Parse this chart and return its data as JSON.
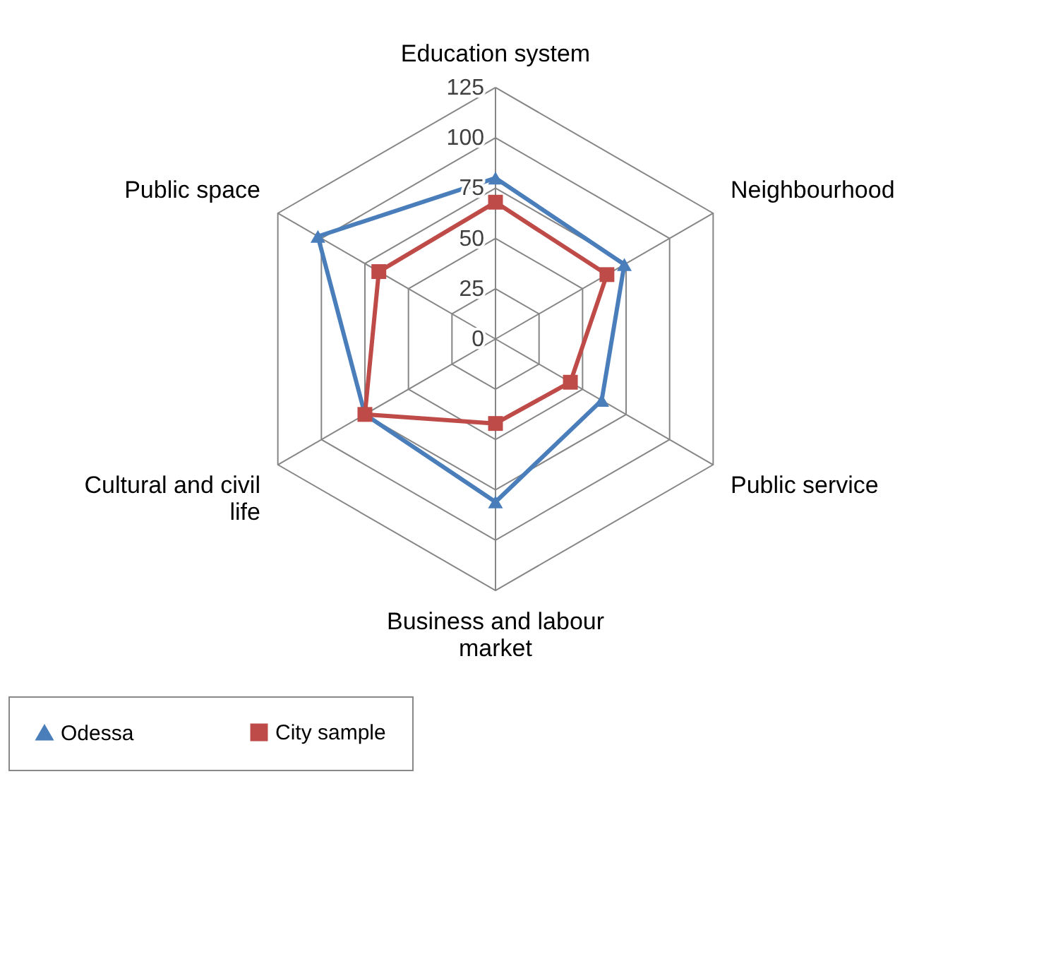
{
  "chart_data": {
    "type": "radar",
    "categories": [
      "Education system",
      "Neighbourhood",
      "Public service",
      "Business and labour market",
      "Cultural and civil life",
      "Public space"
    ],
    "series": [
      {
        "name": "Odessa",
        "color": "#4a7ebb",
        "marker": "triangle",
        "values": [
          80,
          74,
          61,
          81,
          75,
          102
        ]
      },
      {
        "name": "City sample",
        "color": "#be4b48",
        "marker": "square",
        "values": [
          68,
          64,
          43,
          42,
          75,
          67
        ]
      }
    ],
    "ylim": [
      0,
      125
    ],
    "yticks": [
      0,
      25,
      50,
      75,
      100,
      125
    ],
    "grid": true,
    "legend": "bottom"
  }
}
